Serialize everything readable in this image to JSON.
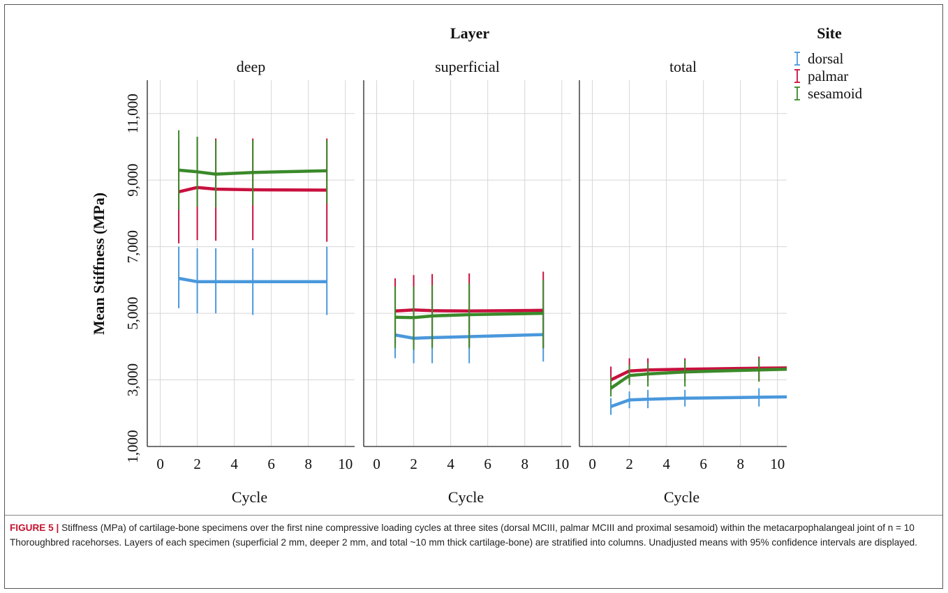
{
  "figure": {
    "caption_label": "FIGURE 5 |",
    "caption_text": "Stiffness (MPa) of cartilage-bone specimens over the first nine compressive loading cycles at three sites (dorsal MCIII, palmar MCIII and proximal sesamoid) within the metacarpophalangeal joint of n = 10 Thoroughbred racehorses. Layers of each specimen (superficial 2 mm, deeper 2 mm, and total ~10 mm thick cartilage-bone) are stratified into columns. Unadjusted means with 95% confidence intervals are displayed."
  },
  "chart_data": {
    "type": "line",
    "facet_title": "Layer",
    "ylabel": "Mean Stiffness (MPa)",
    "xlabel": "Cycle",
    "ylim": [
      1000,
      12000
    ],
    "yticks": [
      1000,
      3000,
      5000,
      7000,
      9000,
      11000
    ],
    "ytick_labels": [
      "1,000",
      "3,000",
      "5,000",
      "7,000",
      "9,000",
      "11,000"
    ],
    "xlim": [
      -0.7,
      10.5
    ],
    "xticks": [
      0,
      2,
      4,
      6,
      8,
      10
    ],
    "xtick_labels": [
      "0",
      "2",
      "4",
      "6",
      "8",
      "10"
    ],
    "grid": true,
    "legend": {
      "title": "Site",
      "position": "top-right",
      "entries": [
        {
          "name": "dorsal",
          "color": "#4a98dc"
        },
        {
          "name": "palmar",
          "color": "#c8103e"
        },
        {
          "name": "sesamoid",
          "color": "#3a8a2a"
        }
      ]
    },
    "panels": [
      {
        "title": "deep",
        "series": [
          {
            "name": "dorsal",
            "color": "#4a98dc",
            "x": [
              1,
              2,
              3,
              5,
              9
            ],
            "y": [
              6050,
              5950,
              5950,
              5950,
              5950
            ],
            "err_low": [
              5150,
              5000,
              5000,
              4950,
              4950
            ],
            "err_high": [
              7000,
              6950,
              6950,
              6950,
              7000
            ]
          },
          {
            "name": "palmar",
            "color": "#c8103e",
            "x": [
              1,
              2,
              3,
              5,
              9
            ],
            "y": [
              8650,
              8780,
              8730,
              8710,
              8700
            ],
            "err_low": [
              7100,
              7200,
              7180,
              7200,
              7150
            ],
            "err_high": [
              10200,
              10300,
              10250,
              10250,
              10250
            ]
          },
          {
            "name": "sesamoid",
            "color": "#3a8a2a",
            "x": [
              1,
              2,
              3,
              5,
              9
            ],
            "y": [
              9300,
              9250,
              9180,
              9230,
              9280
            ],
            "err_low": [
              8100,
              8200,
              8180,
              8250,
              8300
            ],
            "err_high": [
              10500,
              10300,
              10200,
              10200,
              10200
            ]
          }
        ]
      },
      {
        "title": "superficial",
        "series": [
          {
            "name": "dorsal",
            "color": "#4a98dc",
            "x": [
              1,
              2,
              3,
              5,
              9
            ],
            "y": [
              4350,
              4250,
              4270,
              4300,
              4360
            ],
            "err_low": [
              3650,
              3500,
              3500,
              3500,
              3550
            ],
            "err_high": [
              5000,
              5000,
              5000,
              5050,
              5150
            ]
          },
          {
            "name": "palmar",
            "color": "#c8103e",
            "x": [
              1,
              2,
              3,
              5,
              9
            ],
            "y": [
              5070,
              5100,
              5080,
              5070,
              5090
            ],
            "err_low": [
              4050,
              4000,
              4000,
              4000,
              3950
            ],
            "err_high": [
              6050,
              6150,
              6180,
              6200,
              6250
            ]
          },
          {
            "name": "sesamoid",
            "color": "#3a8a2a",
            "x": [
              1,
              2,
              3,
              5,
              9
            ],
            "y": [
              4880,
              4870,
              4920,
              4960,
              5000
            ],
            "err_low": [
              3950,
              3900,
              3950,
              3950,
              3950
            ],
            "err_high": [
              5800,
              5800,
              5850,
              5900,
              6000
            ]
          }
        ]
      },
      {
        "title": "total",
        "series": [
          {
            "name": "dorsal",
            "color": "#4a98dc",
            "x": [
              1,
              2,
              3,
              5,
              9,
              10.5
            ],
            "y": [
              2200,
              2400,
              2420,
              2450,
              2480,
              2490
            ],
            "err_low": [
              1950,
              2150,
              2150,
              2200,
              2200,
              null
            ],
            "err_high": [
              2450,
              2650,
              2700,
              2700,
              2750,
              null
            ]
          },
          {
            "name": "palmar",
            "color": "#c8103e",
            "x": [
              1,
              2,
              3,
              5,
              9,
              10.5
            ],
            "y": [
              3000,
              3270,
              3300,
              3320,
              3350,
              3360
            ],
            "err_low": [
              2650,
              2950,
              2950,
              2950,
              2950,
              null
            ],
            "err_high": [
              3400,
              3650,
              3650,
              3650,
              3700,
              null
            ]
          },
          {
            "name": "sesamoid",
            "color": "#3a8a2a",
            "x": [
              1,
              2,
              3,
              5,
              9,
              10.5
            ],
            "y": [
              2750,
              3130,
              3180,
              3240,
              3300,
              3320
            ],
            "err_low": [
              2500,
              2850,
              2800,
              2800,
              2950,
              null
            ],
            "err_high": [
              3100,
              3450,
              3500,
              3600,
              3650,
              null
            ]
          }
        ]
      }
    ]
  }
}
